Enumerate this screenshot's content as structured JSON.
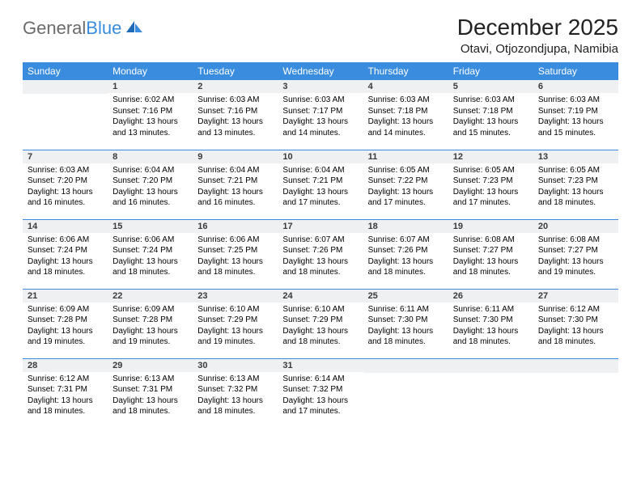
{
  "brand": {
    "part1": "General",
    "part2": "Blue"
  },
  "title": "December 2025",
  "location": "Otavi, Otjozondjupa, Namibia",
  "colors": {
    "header_bg": "#3a8dde",
    "header_text": "#ffffff",
    "daynum_bg": "#eef0f2",
    "row_divider": "#3a8dde",
    "logo_grey": "#6b6b6b",
    "logo_blue": "#3a8dde"
  },
  "fonts": {
    "title_pt": 28,
    "location_pt": 15,
    "th_pt": 12,
    "daynum_pt": 11,
    "body_pt": 10
  },
  "day_headers": [
    "Sunday",
    "Monday",
    "Tuesday",
    "Wednesday",
    "Thursday",
    "Friday",
    "Saturday"
  ],
  "weeks": [
    [
      null,
      {
        "n": "1",
        "sr": "Sunrise: 6:02 AM",
        "ss": "Sunset: 7:16 PM",
        "d1": "Daylight: 13 hours",
        "d2": "and 13 minutes."
      },
      {
        "n": "2",
        "sr": "Sunrise: 6:03 AM",
        "ss": "Sunset: 7:16 PM",
        "d1": "Daylight: 13 hours",
        "d2": "and 13 minutes."
      },
      {
        "n": "3",
        "sr": "Sunrise: 6:03 AM",
        "ss": "Sunset: 7:17 PM",
        "d1": "Daylight: 13 hours",
        "d2": "and 14 minutes."
      },
      {
        "n": "4",
        "sr": "Sunrise: 6:03 AM",
        "ss": "Sunset: 7:18 PM",
        "d1": "Daylight: 13 hours",
        "d2": "and 14 minutes."
      },
      {
        "n": "5",
        "sr": "Sunrise: 6:03 AM",
        "ss": "Sunset: 7:18 PM",
        "d1": "Daylight: 13 hours",
        "d2": "and 15 minutes."
      },
      {
        "n": "6",
        "sr": "Sunrise: 6:03 AM",
        "ss": "Sunset: 7:19 PM",
        "d1": "Daylight: 13 hours",
        "d2": "and 15 minutes."
      }
    ],
    [
      {
        "n": "7",
        "sr": "Sunrise: 6:03 AM",
        "ss": "Sunset: 7:20 PM",
        "d1": "Daylight: 13 hours",
        "d2": "and 16 minutes."
      },
      {
        "n": "8",
        "sr": "Sunrise: 6:04 AM",
        "ss": "Sunset: 7:20 PM",
        "d1": "Daylight: 13 hours",
        "d2": "and 16 minutes."
      },
      {
        "n": "9",
        "sr": "Sunrise: 6:04 AM",
        "ss": "Sunset: 7:21 PM",
        "d1": "Daylight: 13 hours",
        "d2": "and 16 minutes."
      },
      {
        "n": "10",
        "sr": "Sunrise: 6:04 AM",
        "ss": "Sunset: 7:21 PM",
        "d1": "Daylight: 13 hours",
        "d2": "and 17 minutes."
      },
      {
        "n": "11",
        "sr": "Sunrise: 6:05 AM",
        "ss": "Sunset: 7:22 PM",
        "d1": "Daylight: 13 hours",
        "d2": "and 17 minutes."
      },
      {
        "n": "12",
        "sr": "Sunrise: 6:05 AM",
        "ss": "Sunset: 7:23 PM",
        "d1": "Daylight: 13 hours",
        "d2": "and 17 minutes."
      },
      {
        "n": "13",
        "sr": "Sunrise: 6:05 AM",
        "ss": "Sunset: 7:23 PM",
        "d1": "Daylight: 13 hours",
        "d2": "and 18 minutes."
      }
    ],
    [
      {
        "n": "14",
        "sr": "Sunrise: 6:06 AM",
        "ss": "Sunset: 7:24 PM",
        "d1": "Daylight: 13 hours",
        "d2": "and 18 minutes."
      },
      {
        "n": "15",
        "sr": "Sunrise: 6:06 AM",
        "ss": "Sunset: 7:24 PM",
        "d1": "Daylight: 13 hours",
        "d2": "and 18 minutes."
      },
      {
        "n": "16",
        "sr": "Sunrise: 6:06 AM",
        "ss": "Sunset: 7:25 PM",
        "d1": "Daylight: 13 hours",
        "d2": "and 18 minutes."
      },
      {
        "n": "17",
        "sr": "Sunrise: 6:07 AM",
        "ss": "Sunset: 7:26 PM",
        "d1": "Daylight: 13 hours",
        "d2": "and 18 minutes."
      },
      {
        "n": "18",
        "sr": "Sunrise: 6:07 AM",
        "ss": "Sunset: 7:26 PM",
        "d1": "Daylight: 13 hours",
        "d2": "and 18 minutes."
      },
      {
        "n": "19",
        "sr": "Sunrise: 6:08 AM",
        "ss": "Sunset: 7:27 PM",
        "d1": "Daylight: 13 hours",
        "d2": "and 18 minutes."
      },
      {
        "n": "20",
        "sr": "Sunrise: 6:08 AM",
        "ss": "Sunset: 7:27 PM",
        "d1": "Daylight: 13 hours",
        "d2": "and 19 minutes."
      }
    ],
    [
      {
        "n": "21",
        "sr": "Sunrise: 6:09 AM",
        "ss": "Sunset: 7:28 PM",
        "d1": "Daylight: 13 hours",
        "d2": "and 19 minutes."
      },
      {
        "n": "22",
        "sr": "Sunrise: 6:09 AM",
        "ss": "Sunset: 7:28 PM",
        "d1": "Daylight: 13 hours",
        "d2": "and 19 minutes."
      },
      {
        "n": "23",
        "sr": "Sunrise: 6:10 AM",
        "ss": "Sunset: 7:29 PM",
        "d1": "Daylight: 13 hours",
        "d2": "and 19 minutes."
      },
      {
        "n": "24",
        "sr": "Sunrise: 6:10 AM",
        "ss": "Sunset: 7:29 PM",
        "d1": "Daylight: 13 hours",
        "d2": "and 18 minutes."
      },
      {
        "n": "25",
        "sr": "Sunrise: 6:11 AM",
        "ss": "Sunset: 7:30 PM",
        "d1": "Daylight: 13 hours",
        "d2": "and 18 minutes."
      },
      {
        "n": "26",
        "sr": "Sunrise: 6:11 AM",
        "ss": "Sunset: 7:30 PM",
        "d1": "Daylight: 13 hours",
        "d2": "and 18 minutes."
      },
      {
        "n": "27",
        "sr": "Sunrise: 6:12 AM",
        "ss": "Sunset: 7:30 PM",
        "d1": "Daylight: 13 hours",
        "d2": "and 18 minutes."
      }
    ],
    [
      {
        "n": "28",
        "sr": "Sunrise: 6:12 AM",
        "ss": "Sunset: 7:31 PM",
        "d1": "Daylight: 13 hours",
        "d2": "and 18 minutes."
      },
      {
        "n": "29",
        "sr": "Sunrise: 6:13 AM",
        "ss": "Sunset: 7:31 PM",
        "d1": "Daylight: 13 hours",
        "d2": "and 18 minutes."
      },
      {
        "n": "30",
        "sr": "Sunrise: 6:13 AM",
        "ss": "Sunset: 7:32 PM",
        "d1": "Daylight: 13 hours",
        "d2": "and 18 minutes."
      },
      {
        "n": "31",
        "sr": "Sunrise: 6:14 AM",
        "ss": "Sunset: 7:32 PM",
        "d1": "Daylight: 13 hours",
        "d2": "and 17 minutes."
      },
      null,
      null,
      null
    ]
  ]
}
